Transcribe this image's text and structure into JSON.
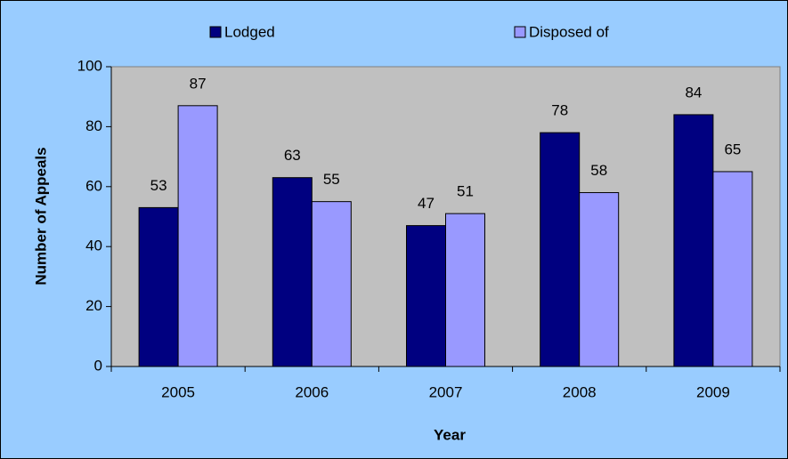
{
  "chart_data": {
    "type": "bar",
    "categories": [
      "2005",
      "2006",
      "2007",
      "2008",
      "2009"
    ],
    "series": [
      {
        "name": "Lodged",
        "color": "#000080",
        "values": [
          53,
          63,
          47,
          78,
          84
        ]
      },
      {
        "name": "Disposed of",
        "color": "#9999ff",
        "values": [
          87,
          55,
          51,
          58,
          65
        ]
      }
    ],
    "x_label": "Year",
    "y_label": "Number of Appeals",
    "ylim": [
      0,
      100
    ],
    "yticks": [
      0,
      20,
      40,
      60,
      80,
      100
    ],
    "legend": "top",
    "data_labels": true
  }
}
